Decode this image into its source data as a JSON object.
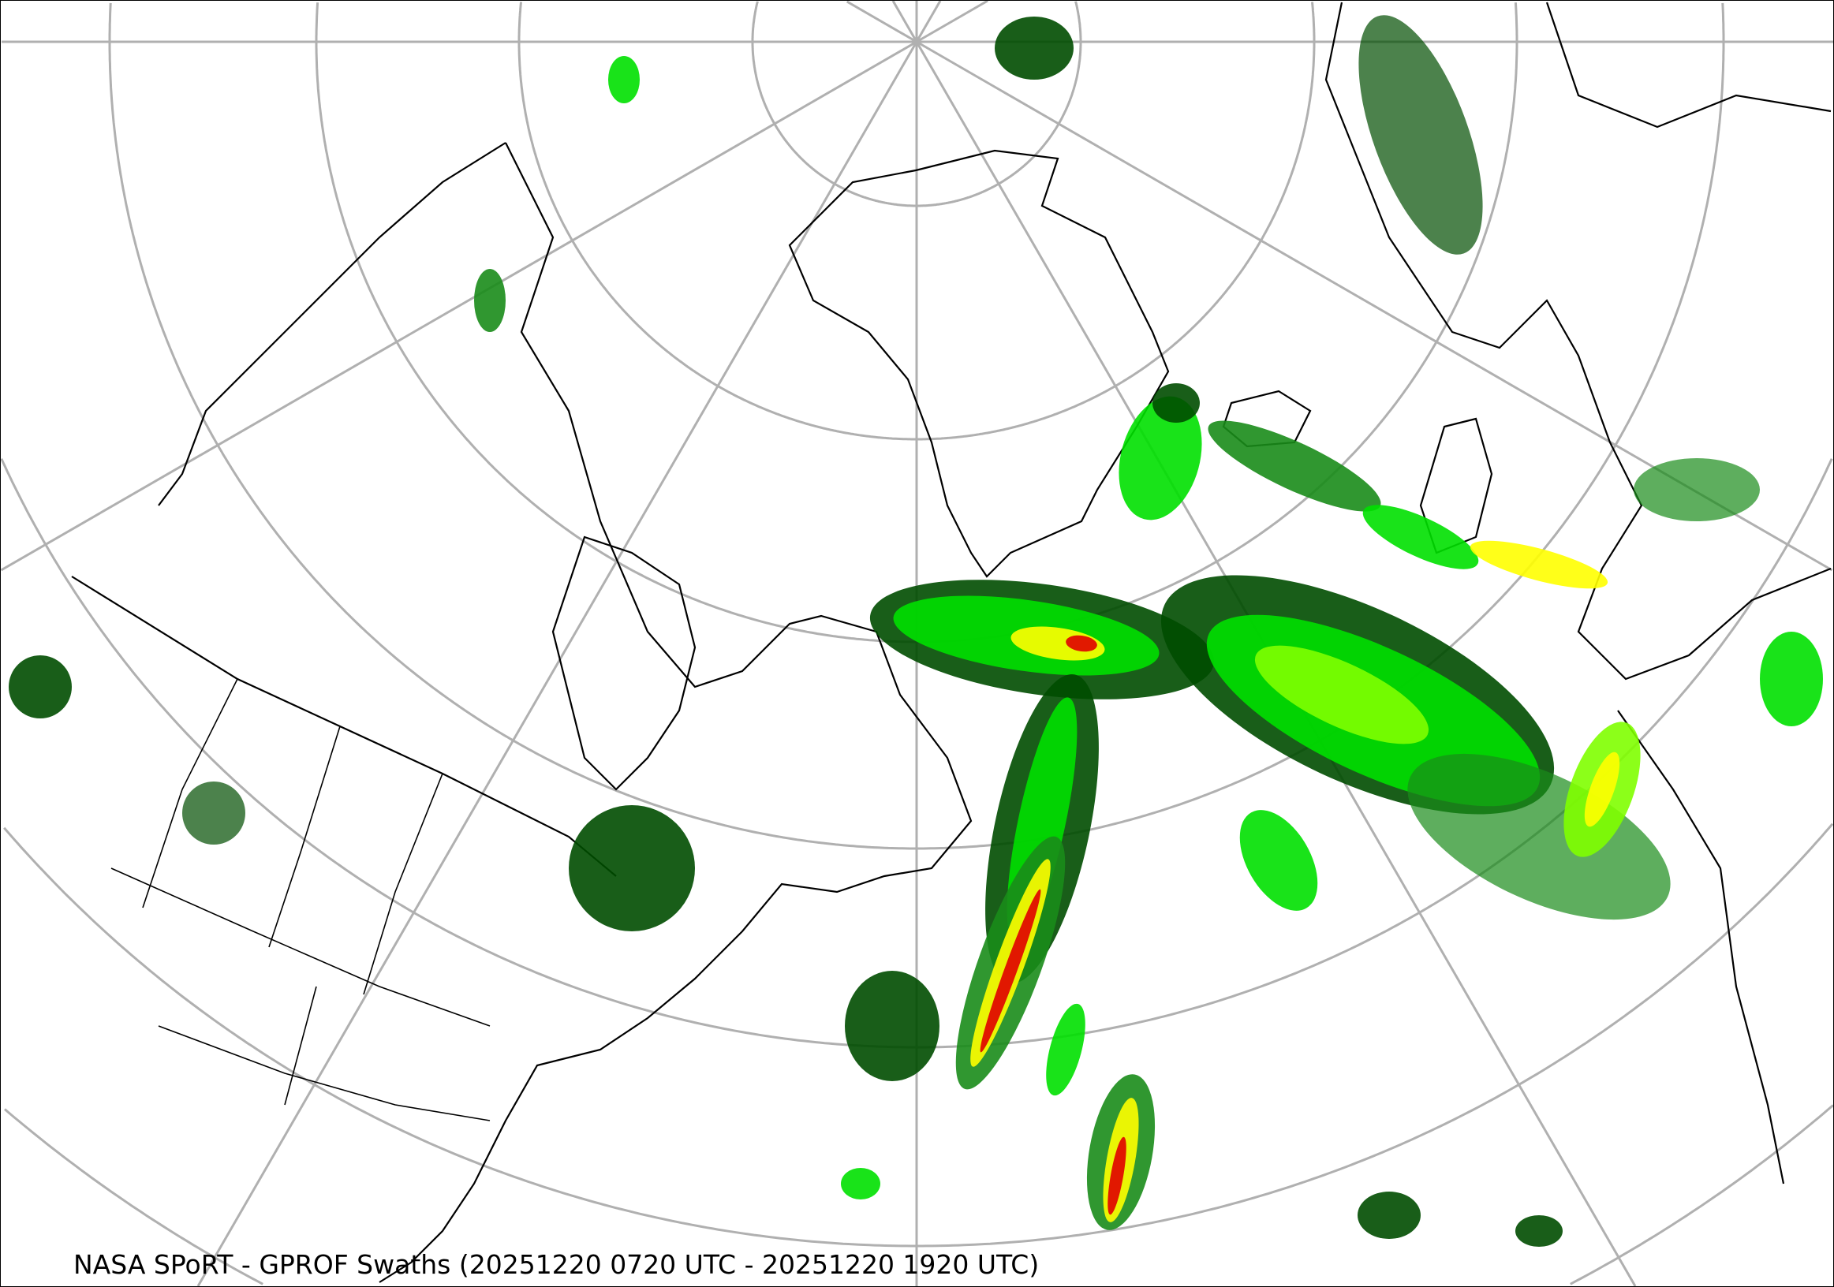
{
  "caption": "NASA SPoRT - GPROF Swaths (20251220 0720 UTC - 20251220 1920 UTC)",
  "map": {
    "projection": "north polar stereographic",
    "graticule_color": "#b0b0b0",
    "boundary_color": "#000000",
    "precip_colors": [
      "#004d00",
      "#1a8c1a",
      "#00e000",
      "#7fff00",
      "#ffff00",
      "#ffa500",
      "#e00000"
    ]
  }
}
